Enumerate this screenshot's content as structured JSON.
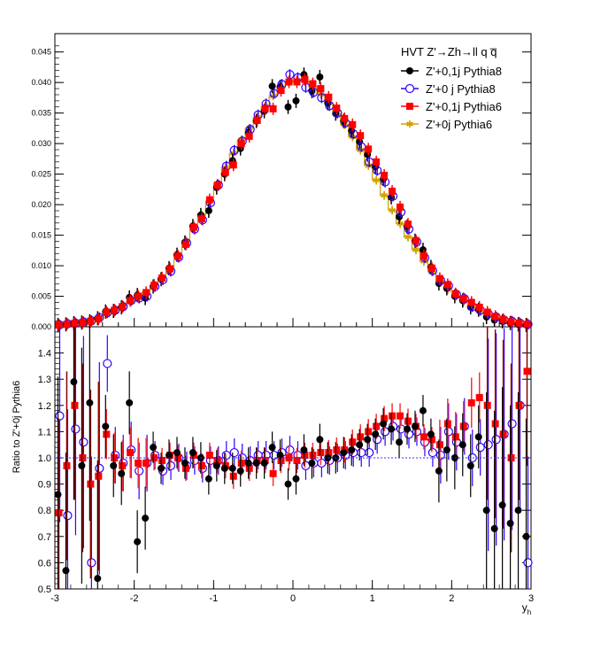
{
  "chart_data": [
    {
      "type": "scatter",
      "panel": "top",
      "title": "",
      "xlabel": "",
      "ylabel": "",
      "xlim": [
        -3,
        3
      ],
      "ylim": [
        0,
        0.048
      ],
      "yticks": [
        "0.000",
        "0.005",
        "0.010",
        "0.015",
        "0.020",
        "0.025",
        "0.030",
        "0.035",
        "0.040",
        "0.045"
      ],
      "yticks_values": [
        0,
        0.005,
        0.01,
        0.015,
        0.02,
        0.025,
        0.03,
        0.035,
        0.04,
        0.045
      ],
      "legend_title": "HVT Z'→Zh→ll q q̅",
      "legend_placement": "top-right",
      "series": [
        {
          "name": "Z'+0,1j Pythia8",
          "color": "#000000",
          "marker": "filled-circle"
        },
        {
          "name": "Z'+0 j Pythia8",
          "color": "#3300ff",
          "marker": "open-circle"
        },
        {
          "name": "Z'+0,1j Pythia6",
          "color": "#ff0000",
          "marker": "filled-square"
        },
        {
          "name": "Z'+0j Pythia6",
          "color": "#d4a000",
          "marker": "star-step"
        }
      ],
      "x": [
        -2.95,
        -2.85,
        -2.75,
        -2.65,
        -2.55,
        -2.45,
        -2.35,
        -2.25,
        -2.15,
        -2.05,
        -1.95,
        -1.85,
        -1.75,
        -1.65,
        -1.55,
        -1.45,
        -1.35,
        -1.25,
        -1.15,
        -1.05,
        -0.95,
        -0.85,
        -0.75,
        -0.65,
        -0.55,
        -0.45,
        -0.35,
        -0.25,
        -0.15,
        -0.05,
        0.05,
        0.15,
        0.25,
        0.35,
        0.45,
        0.55,
        0.65,
        0.75,
        0.85,
        0.95,
        1.05,
        1.15,
        1.25,
        1.35,
        1.45,
        1.55,
        1.65,
        1.75,
        1.85,
        1.95,
        2.05,
        2.15,
        2.25,
        2.35,
        2.45,
        2.55,
        2.65,
        2.75,
        2.85,
        2.95
      ],
      "values": {
        "p8_01j": [
          0.0003,
          0.0004,
          0.0006,
          0.0007,
          0.0009,
          0.0014,
          0.0025,
          0.0026,
          0.0032,
          0.0048,
          0.0052,
          0.0047,
          0.0066,
          0.0078,
          0.0096,
          0.0118,
          0.0138,
          0.0165,
          0.0183,
          0.019,
          0.0228,
          0.025,
          0.0272,
          0.0292,
          0.0318,
          0.0337,
          0.0353,
          0.0394,
          0.0393,
          0.036,
          0.037,
          0.0413,
          0.0386,
          0.0409,
          0.0366,
          0.0349,
          0.0337,
          0.0321,
          0.0303,
          0.0282,
          0.0262,
          0.0242,
          0.0212,
          0.018,
          0.0164,
          0.0141,
          0.0126,
          0.0098,
          0.0071,
          0.0063,
          0.005,
          0.0043,
          0.0032,
          0.0028,
          0.0016,
          0.0011,
          0.0009,
          0.0006,
          0.0004,
          0.0003
        ],
        "p8_0j": [
          0.0003,
          0.0005,
          0.0006,
          0.0008,
          0.001,
          0.0015,
          0.0023,
          0.0027,
          0.0033,
          0.0043,
          0.0047,
          0.005,
          0.0066,
          0.0077,
          0.0091,
          0.0114,
          0.0137,
          0.016,
          0.0175,
          0.0203,
          0.0232,
          0.0263,
          0.0289,
          0.0304,
          0.0323,
          0.0347,
          0.0365,
          0.0382,
          0.0397,
          0.0413,
          0.0408,
          0.0392,
          0.0384,
          0.0375,
          0.0362,
          0.035,
          0.0334,
          0.0316,
          0.0295,
          0.027,
          0.0256,
          0.0237,
          0.0214,
          0.0188,
          0.016,
          0.0139,
          0.0113,
          0.0092,
          0.0076,
          0.0067,
          0.0053,
          0.0046,
          0.0033,
          0.0027,
          0.0021,
          0.0016,
          0.0011,
          0.0009,
          0.0006,
          0.0004
        ],
        "p6_01j": [
          0.0003,
          0.0004,
          0.0006,
          0.0007,
          0.0009,
          0.0013,
          0.0024,
          0.0027,
          0.0033,
          0.0043,
          0.005,
          0.0056,
          0.0068,
          0.008,
          0.0095,
          0.0116,
          0.0135,
          0.0163,
          0.0177,
          0.0208,
          0.0232,
          0.0253,
          0.0265,
          0.03,
          0.0312,
          0.0338,
          0.0357,
          0.0357,
          0.0387,
          0.0401,
          0.0401,
          0.0405,
          0.0398,
          0.039,
          0.0376,
          0.0358,
          0.0341,
          0.0331,
          0.0313,
          0.0291,
          0.027,
          0.0248,
          0.0222,
          0.0196,
          0.0168,
          0.0141,
          0.0116,
          0.0096,
          0.0079,
          0.0069,
          0.0054,
          0.0046,
          0.004,
          0.0032,
          0.0024,
          0.0017,
          0.0012,
          0.0008,
          0.0006,
          0.0004
        ],
        "p6_0j": [
          0.0003,
          0.0004,
          0.0005,
          0.0007,
          0.001,
          0.0014,
          0.0022,
          0.0027,
          0.0034,
          0.0042,
          0.0051,
          0.0057,
          0.0068,
          0.0081,
          0.0094,
          0.0116,
          0.0141,
          0.0162,
          0.0183,
          0.0206,
          0.0235,
          0.0261,
          0.0284,
          0.0306,
          0.0325,
          0.0343,
          0.0361,
          0.0378,
          0.0391,
          0.04,
          0.0404,
          0.0402,
          0.0393,
          0.0381,
          0.0367,
          0.0349,
          0.0331,
          0.0311,
          0.0289,
          0.0264,
          0.024,
          0.0215,
          0.0191,
          0.0169,
          0.0147,
          0.0126,
          0.0107,
          0.009,
          0.0075,
          0.0061,
          0.005,
          0.0041,
          0.0033,
          0.0026,
          0.002,
          0.0015,
          0.0011,
          0.0008,
          0.0005,
          0.0003
        ]
      }
    },
    {
      "type": "scatter",
      "panel": "bottom",
      "title": "",
      "xlabel": "y_h",
      "ylabel": "Ratio to Z'+0j Pythia6",
      "xlim": [
        -3,
        3
      ],
      "ylim": [
        0.5,
        1.5
      ],
      "xticks": [
        "-3",
        "-2",
        "-1",
        "0",
        "1",
        "2",
        "3"
      ],
      "xticks_values": [
        -3,
        -2,
        -1,
        0,
        1,
        2,
        3
      ],
      "yticks": [
        "0.5",
        "0.6",
        "0.7",
        "0.8",
        "0.9",
        "1.0",
        "1.1",
        "1.2",
        "1.3",
        "1.4"
      ],
      "yticks_values": [
        0.5,
        0.6,
        0.7,
        0.8,
        0.9,
        1.0,
        1.1,
        1.2,
        1.3,
        1.4
      ],
      "reference_line": 1.0,
      "x": [
        -2.95,
        -2.85,
        -2.75,
        -2.65,
        -2.55,
        -2.45,
        -2.35,
        -2.25,
        -2.15,
        -2.05,
        -1.95,
        -1.85,
        -1.75,
        -1.65,
        -1.55,
        -1.45,
        -1.35,
        -1.25,
        -1.15,
        -1.05,
        -0.95,
        -0.85,
        -0.75,
        -0.65,
        -0.55,
        -0.45,
        -0.35,
        -0.25,
        -0.15,
        -0.05,
        0.05,
        0.15,
        0.25,
        0.35,
        0.45,
        0.55,
        0.65,
        0.75,
        0.85,
        0.95,
        1.05,
        1.15,
        1.25,
        1.35,
        1.45,
        1.55,
        1.65,
        1.75,
        1.85,
        1.95,
        2.05,
        2.15,
        2.25,
        2.35,
        2.45,
        2.55,
        2.65,
        2.75,
        2.85,
        2.95
      ],
      "values": {
        "p8_01j": [
          0.86,
          0.57,
          1.29,
          0.97,
          1.21,
          0.54,
          1.12,
          0.97,
          0.94,
          1.21,
          0.68,
          0.77,
          1.04,
          0.96,
          1.01,
          1.02,
          0.98,
          1.02,
          1.0,
          0.92,
          0.97,
          0.96,
          0.96,
          0.95,
          0.98,
          0.98,
          0.98,
          1.04,
          1.01,
          0.9,
          0.92,
          1.03,
          0.98,
          1.07,
          1.0,
          1.0,
          1.02,
          1.03,
          1.05,
          1.07,
          1.09,
          1.13,
          1.11,
          1.06,
          1.11,
          1.12,
          1.18,
          1.09,
          0.95,
          1.03,
          1.0,
          1.05,
          0.97,
          1.08,
          0.8,
          0.73,
          0.82,
          0.75,
          0.8,
          0.7
        ],
        "p8_0j": [
          1.16,
          0.78,
          1.11,
          1.06,
          0.6,
          0.96,
          1.36,
          1.01,
          0.98,
          1.03,
          0.95,
          0.98,
          1.01,
          0.95,
          0.97,
          1.0,
          0.97,
          0.99,
          0.96,
          0.99,
          0.99,
          1.01,
          1.02,
          1.0,
          0.99,
          1.01,
          1.01,
          1.01,
          1.02,
          1.03,
          1.01,
          0.97,
          0.98,
          0.98,
          0.99,
          1.0,
          1.01,
          1.02,
          1.02,
          1.02,
          1.07,
          1.1,
          1.12,
          1.11,
          1.09,
          1.1,
          1.06,
          1.02,
          1.01,
          1.1,
          1.06,
          1.12,
          1.0,
          1.04,
          1.05,
          1.07,
          1.09,
          1.13,
          1.2,
          0.6
        ],
        "p6_01j": [
          0.79,
          0.97,
          1.2,
          1.0,
          0.9,
          0.93,
          1.09,
          1.0,
          0.97,
          1.02,
          0.98,
          0.98,
          1.0,
          0.99,
          1.01,
          1.0,
          0.96,
          1.01,
          0.97,
          1.01,
          0.99,
          0.97,
          0.93,
          0.98,
          0.96,
          0.99,
          0.99,
          0.94,
          0.99,
          1.0,
          0.99,
          1.01,
          1.01,
          1.02,
          1.02,
          1.03,
          1.03,
          1.06,
          1.08,
          1.1,
          1.12,
          1.15,
          1.16,
          1.16,
          1.14,
          1.12,
          1.08,
          1.07,
          1.05,
          1.13,
          1.08,
          1.12,
          1.21,
          1.23,
          1.2,
          1.13,
          1.09,
          1.0,
          1.2,
          1.33
        ]
      }
    }
  ]
}
